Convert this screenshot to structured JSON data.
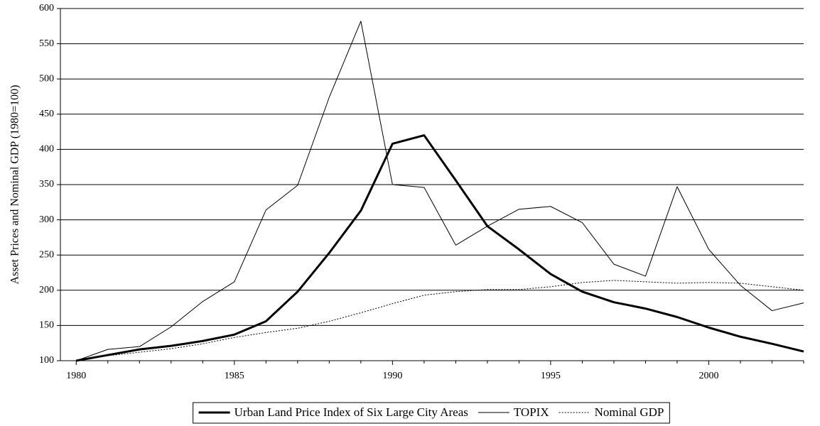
{
  "chart_data": {
    "type": "line",
    "y_label": "Asset Prices and Nominal GDP (1980=100)",
    "x": [
      1980,
      1981,
      1982,
      1983,
      1984,
      1985,
      1986,
      1987,
      1988,
      1989,
      1990,
      1991,
      1992,
      1993,
      1994,
      1995,
      1996,
      1997,
      1998,
      1999,
      2000,
      2001,
      2002,
      2003
    ],
    "series": [
      {
        "name": "Urban Land Price Index of Six Large City Areas",
        "color": "#000000",
        "width": 3,
        "style": "solid",
        "values": [
          100,
          108,
          116,
          121,
          128,
          137,
          156,
          198,
          253,
          313,
          408,
          420,
          356,
          291,
          258,
          223,
          198,
          183,
          174,
          162,
          147,
          134,
          124,
          113
        ]
      },
      {
        "name": "TOPIX",
        "color": "#000000",
        "width": 1,
        "style": "solid",
        "values": [
          100,
          116,
          120,
          148,
          184,
          212,
          314,
          349,
          474,
          582,
          350,
          346,
          264,
          291,
          315,
          319,
          296,
          237,
          220,
          347,
          258,
          207,
          171,
          182
        ]
      },
      {
        "name": "Nominal GDP",
        "color": "#000000",
        "width": 1,
        "style": "dotted",
        "values": [
          100,
          107,
          112,
          117,
          124,
          133,
          140,
          146,
          156,
          168,
          181,
          193,
          198,
          201,
          201,
          205,
          211,
          214,
          212,
          210,
          211,
          210,
          205,
          200
        ]
      }
    ],
    "xlim": [
      1979.5,
      2003
    ],
    "xticks": [
      1980,
      1985,
      1990,
      1995,
      2000
    ],
    "xminorticks": [
      1981,
      1982,
      1983,
      1984,
      1986,
      1987,
      1988,
      1989,
      1991,
      1992,
      1993,
      1994,
      1996,
      1997,
      1998,
      1999,
      2001,
      2002,
      2003
    ],
    "ylim": [
      100,
      600
    ],
    "yticks": [
      100,
      150,
      200,
      250,
      300,
      350,
      400,
      450,
      500,
      550,
      600
    ],
    "grid": true,
    "legend": "bottom"
  }
}
